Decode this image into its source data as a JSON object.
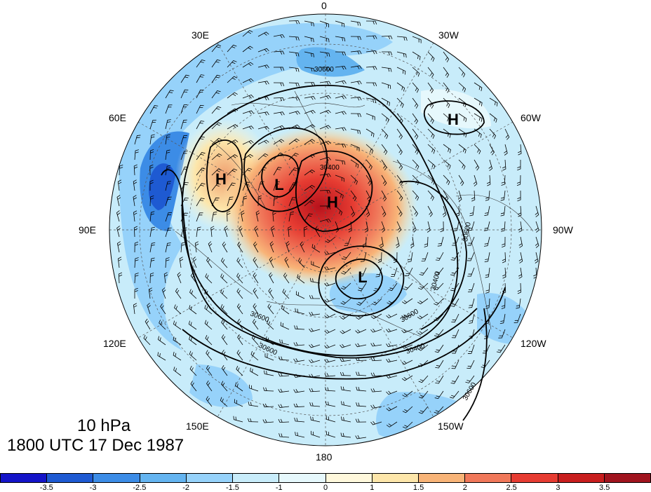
{
  "titles": {
    "level": "10 hPa",
    "time": "1800 UTC 17 Dec 1987"
  },
  "longitude_labels": [
    {
      "id": "0",
      "text": "0"
    },
    {
      "id": "30w",
      "text": "30W"
    },
    {
      "id": "60w",
      "text": "60W"
    },
    {
      "id": "90w",
      "text": "90W"
    },
    {
      "id": "120w",
      "text": "120W"
    },
    {
      "id": "150w",
      "text": "150W"
    },
    {
      "id": "180",
      "text": "180"
    },
    {
      "id": "150e",
      "text": "150E"
    },
    {
      "id": "120e",
      "text": "120E"
    },
    {
      "id": "90e",
      "text": "90E"
    },
    {
      "id": "60e",
      "text": "60E"
    },
    {
      "id": "30e",
      "text": "30E"
    }
  ],
  "pressure_centers": [
    {
      "id": "high-north-america",
      "symbol": "H"
    },
    {
      "id": "high-siberia",
      "symbol": "H"
    },
    {
      "id": "low-europe",
      "symbol": "L"
    },
    {
      "id": "high-pole",
      "symbol": "H"
    },
    {
      "id": "low-pacific",
      "symbol": "L"
    }
  ],
  "contour_labels": [
    "30600",
    "30400",
    "30600",
    "30400",
    "30600",
    "30400",
    "30600",
    "30600",
    "30600"
  ],
  "colorbar": {
    "colors": [
      "#1414c8",
      "#1e5ad2",
      "#3c8ce6",
      "#64b4f0",
      "#96d2fa",
      "#c8ecfa",
      "#e6f8fc",
      "#fff8dc",
      "#fde6aa",
      "#f8b478",
      "#f0785a",
      "#e63c32",
      "#c81e1e",
      "#a0141e"
    ],
    "ticks": [
      "-3.5",
      "-3",
      "-2.5",
      "-2",
      "-1.5",
      "-1",
      "0",
      "1",
      "1.5",
      "2",
      "2.5",
      "3",
      "3.5"
    ]
  },
  "colors": {
    "warm_core": "#e8393a",
    "cold_band": "#5aa0e6",
    "light_blue": "#c8ecfa"
  }
}
